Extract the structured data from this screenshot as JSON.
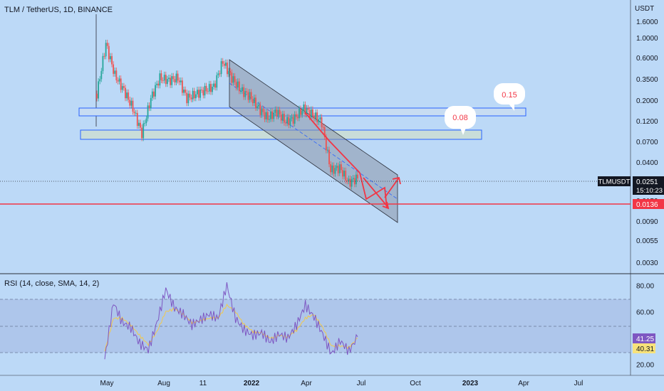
{
  "header": {
    "symbol_title": "TLM / TetherUS, 1D, BINANCE",
    "currency": "USDT",
    "rsi_title": "RSI (14, close, SMA, 14, 2)"
  },
  "price_axis": {
    "scale": "log",
    "ticks": [
      "1.6000",
      "1.0000",
      "0.6000",
      "0.3500",
      "0.2000",
      "0.1200",
      "0.0700",
      "0.0400",
      "0.0250",
      "0.0150",
      "0.0090",
      "0.0055",
      "0.0030"
    ]
  },
  "price_badges": {
    "symbol": "TLMUSDT",
    "last_price": "0.0251",
    "countdown": "15:10:23",
    "line_level": "0.0136"
  },
  "annotations": {
    "callout_upper": "0.15",
    "callout_lower": "0.08"
  },
  "rsi_axis": {
    "ticks": [
      "80.00",
      "60.00",
      "40.00",
      "20.00"
    ],
    "rsi_value": "41.25",
    "sma_value": "40.31"
  },
  "time_axis": {
    "labels": [
      "May",
      "Aug",
      "11",
      "2022",
      "Apr",
      "Jul",
      "Oct",
      "2023",
      "Apr",
      "Jul"
    ]
  },
  "colors": {
    "background": "#bcd9f7",
    "up_candle": "#26a69a",
    "down_candle": "#ef5350",
    "zone_border": "#2962ff",
    "channel_fill": "#8a96aa",
    "red_line": "#f23645",
    "rsi_line": "#7e57c2",
    "rsi_sma": "#f2c94c"
  },
  "chart_data": [
    {
      "type": "candlestick",
      "series": [
        {
          "name": "TLMUSDT",
          "x": [
            "2021-04-25",
            "2021-05-05",
            "2021-05-20",
            "2021-06-05",
            "2021-06-20",
            "2021-07-05",
            "2021-07-20",
            "2021-08-05",
            "2021-08-20",
            "2021-09-05",
            "2021-09-20",
            "2021-10-05",
            "2021-10-20",
            "2021-11-05",
            "2021-11-20",
            "2021-12-05",
            "2021-12-20",
            "2022-01-05",
            "2022-01-20",
            "2022-02-05",
            "2022-02-20",
            "2022-03-05",
            "2022-03-20",
            "2022-04-05",
            "2022-04-20",
            "2022-05-05",
            "2022-05-20",
            "2022-06-05",
            "2022-06-20",
            "2022-07-01"
          ],
          "close": [
            0.2,
            0.7,
            0.32,
            0.22,
            0.14,
            0.075,
            0.18,
            0.3,
            0.28,
            0.3,
            0.18,
            0.2,
            0.22,
            0.24,
            0.45,
            0.3,
            0.22,
            0.19,
            0.14,
            0.11,
            0.13,
            0.1,
            0.11,
            0.14,
            0.12,
            0.1,
            0.03,
            0.032,
            0.022,
            0.025
          ]
        }
      ],
      "ylim": [
        0.0025,
        1.8
      ],
      "yscale": "log",
      "price_line": 0.0136,
      "last_price": 0.0251
    },
    {
      "type": "line",
      "series": [
        {
          "name": "RSI",
          "values": [
            24,
            67,
            52,
            48,
            36,
            31,
            52,
            77,
            63,
            58,
            50,
            54,
            58,
            55,
            80,
            55,
            46,
            42,
            44,
            37,
            43,
            40,
            50,
            65,
            56,
            43,
            28,
            38,
            30,
            41
          ]
        },
        {
          "name": "SMA",
          "values": [
            30,
            55,
            55,
            50,
            42,
            35,
            45,
            60,
            62,
            58,
            52,
            53,
            55,
            55,
            65,
            60,
            50,
            45,
            44,
            40,
            42,
            41,
            46,
            55,
            58,
            48,
            34,
            34,
            33,
            40
          ]
        }
      ],
      "ylim": [
        15,
        85
      ],
      "bands": [
        30,
        50,
        70
      ]
    }
  ]
}
